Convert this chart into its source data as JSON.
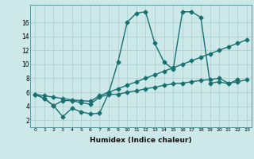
{
  "xlabel": "Humidex (Indice chaleur)",
  "background_color": "#cce8e8",
  "grid_color": "#b0d0d0",
  "line_color": "#1a7070",
  "xlim": [
    -0.5,
    23.5
  ],
  "ylim": [
    1.0,
    18.5
  ],
  "yticks": [
    2,
    4,
    6,
    8,
    10,
    12,
    14,
    16
  ],
  "xticks": [
    0,
    1,
    2,
    3,
    4,
    5,
    6,
    7,
    8,
    9,
    10,
    11,
    12,
    13,
    14,
    15,
    16,
    17,
    18,
    19,
    20,
    21,
    22,
    23
  ],
  "series1_x": [
    0,
    1,
    2,
    3,
    4,
    5,
    6,
    7,
    8,
    9,
    10,
    11,
    12,
    13,
    14,
    15,
    16,
    17,
    18,
    19,
    20,
    21,
    22
  ],
  "series1_y": [
    5.7,
    5.1,
    4.1,
    2.5,
    3.7,
    3.2,
    2.9,
    3.0,
    5.9,
    10.3,
    16.0,
    17.3,
    17.5,
    13.0,
    10.3,
    9.3,
    17.5,
    17.5,
    16.7,
    7.3,
    7.5,
    7.2,
    7.8
  ],
  "series2_x": [
    0,
    1,
    2,
    3,
    4,
    5,
    6,
    7,
    8,
    9,
    10,
    11,
    12,
    13,
    14,
    15,
    16,
    17,
    18,
    19,
    20,
    21,
    22,
    23
  ],
  "series2_y": [
    5.7,
    5.5,
    5.3,
    5.1,
    4.9,
    4.8,
    4.7,
    5.5,
    6.0,
    6.5,
    7.0,
    7.5,
    8.0,
    8.5,
    9.0,
    9.5,
    10.0,
    10.5,
    11.0,
    11.5,
    12.0,
    12.5,
    13.0,
    13.5
  ],
  "series3_x": [
    0,
    1,
    2,
    3,
    4,
    5,
    6,
    7,
    8,
    9,
    10,
    11,
    12,
    13,
    14,
    15,
    16,
    17,
    18,
    19,
    20,
    21,
    22,
    23
  ],
  "series3_y": [
    5.7,
    5.1,
    4.1,
    4.8,
    4.8,
    4.5,
    4.3,
    5.3,
    5.7,
    5.7,
    6.0,
    6.2,
    6.5,
    6.7,
    7.0,
    7.2,
    7.3,
    7.5,
    7.7,
    7.8,
    8.0,
    7.3,
    7.5,
    7.8
  ],
  "marker_size": 2.5,
  "line_width": 1.0
}
